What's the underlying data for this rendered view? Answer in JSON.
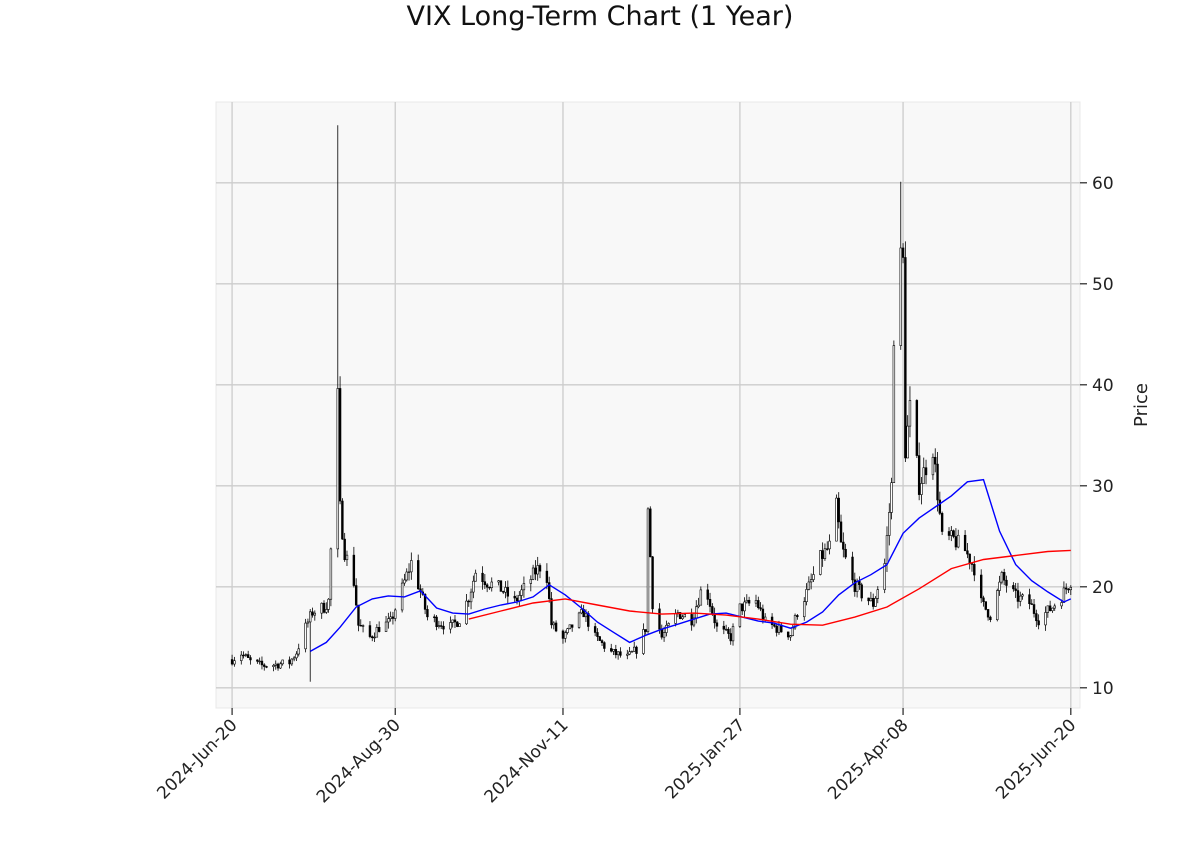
{
  "chart_data": {
    "type": "candlestick",
    "title": "VIX Long-Term Chart (1 Year)",
    "xlabel": "",
    "ylabel": "Price",
    "ylim": [
      8,
      68
    ],
    "xlim": [
      "2024-06-13",
      "2025-06-24"
    ],
    "grid": true,
    "y_axis_side": "right",
    "y_ticks": [
      10,
      20,
      30,
      40,
      50,
      60
    ],
    "x_ticks": [
      {
        "date": "2024-06-20",
        "label": "2024-Jun-20"
      },
      {
        "date": "2024-08-30",
        "label": "2024-Aug-30"
      },
      {
        "date": "2024-11-11",
        "label": "2024-Nov-11"
      },
      {
        "date": "2025-01-27",
        "label": "2025-Jan-27"
      },
      {
        "date": "2025-04-08",
        "label": "2025-Apr-08"
      },
      {
        "date": "2025-06-20",
        "label": "2025-Jun-20"
      }
    ],
    "colors": {
      "candles": "#000000",
      "ma_short": "#0000ff",
      "ma_long": "#ff0000",
      "grid": "#cccccc",
      "plot_bg": "#f8f8f8"
    },
    "price_path": [
      [
        "2024-06-20",
        12.8
      ],
      [
        "2024-06-24",
        13.4
      ],
      [
        "2024-06-28",
        12.6
      ],
      [
        "2024-07-03",
        12.2
      ],
      [
        "2024-07-09",
        12.3
      ],
      [
        "2024-07-15",
        12.5
      ],
      [
        "2024-07-18",
        13.5
      ],
      [
        "2024-07-22",
        16.0
      ],
      [
        "2024-07-25",
        17.5
      ],
      [
        "2024-07-30",
        18.0
      ],
      [
        "2024-08-01",
        18.6
      ],
      [
        "2024-08-05",
        38.6
      ],
      [
        "2024-08-06",
        27.7
      ],
      [
        "2024-08-08",
        23.5
      ],
      [
        "2024-08-12",
        20.5
      ],
      [
        "2024-08-14",
        16.2
      ],
      [
        "2024-08-19",
        15.0
      ],
      [
        "2024-08-23",
        16.0
      ],
      [
        "2024-08-28",
        16.5
      ],
      [
        "2024-09-03",
        20.5
      ],
      [
        "2024-09-06",
        22.4
      ],
      [
        "2024-09-10",
        19.5
      ],
      [
        "2024-09-13",
        17.0
      ],
      [
        "2024-09-18",
        16.5
      ],
      [
        "2024-09-23",
        16.0
      ],
      [
        "2024-09-27",
        16.8
      ],
      [
        "2024-10-01",
        19.0
      ],
      [
        "2024-10-04",
        21.5
      ],
      [
        "2024-10-09",
        20.5
      ],
      [
        "2024-10-15",
        19.8
      ],
      [
        "2024-10-21",
        18.5
      ],
      [
        "2024-10-25",
        19.8
      ],
      [
        "2024-10-30",
        21.5
      ],
      [
        "2024-11-01",
        22.0
      ],
      [
        "2024-11-04",
        21.0
      ],
      [
        "2024-11-06",
        16.3
      ],
      [
        "2024-11-11",
        14.8
      ],
      [
        "2024-11-15",
        16.1
      ],
      [
        "2024-11-20",
        17.5
      ],
      [
        "2024-11-25",
        15.0
      ],
      [
        "2024-12-02",
        13.5
      ],
      [
        "2024-12-09",
        13.0
      ],
      [
        "2024-12-13",
        13.8
      ],
      [
        "2024-12-17",
        15.9
      ],
      [
        "2024-12-18",
        27.6
      ],
      [
        "2024-12-20",
        18.4
      ],
      [
        "2024-12-24",
        15.0
      ],
      [
        "2024-12-31",
        17.4
      ],
      [
        "2025-01-06",
        16.8
      ],
      [
        "2025-01-10",
        19.5
      ],
      [
        "2025-01-13",
        19.2
      ],
      [
        "2025-01-17",
        15.9
      ],
      [
        "2025-01-23",
        15.0
      ],
      [
        "2025-01-27",
        17.9
      ],
      [
        "2025-02-03",
        18.6
      ],
      [
        "2025-02-07",
        16.5
      ],
      [
        "2025-02-12",
        15.9
      ],
      [
        "2025-02-18",
        15.3
      ],
      [
        "2025-02-21",
        17.5
      ],
      [
        "2025-02-25",
        19.4
      ],
      [
        "2025-03-03",
        22.8
      ],
      [
        "2025-03-07",
        24.0
      ],
      [
        "2025-03-10",
        27.9
      ],
      [
        "2025-03-12",
        24.1
      ],
      [
        "2025-03-17",
        20.5
      ],
      [
        "2025-03-21",
        19.3
      ],
      [
        "2025-03-26",
        18.3
      ],
      [
        "2025-03-31",
        22.3
      ],
      [
        "2025-04-03",
        30.0
      ],
      [
        "2025-04-04",
        45.3
      ],
      [
        "2025-04-07",
        52.3
      ],
      [
        "2025-04-08",
        52.0
      ],
      [
        "2025-04-09",
        33.6
      ],
      [
        "2025-04-11",
        37.6
      ],
      [
        "2025-04-15",
        30.1
      ],
      [
        "2025-04-21",
        33.8
      ],
      [
        "2025-04-25",
        24.8
      ],
      [
        "2025-04-30",
        24.7
      ],
      [
        "2025-05-05",
        23.6
      ],
      [
        "2025-05-09",
        21.9
      ],
      [
        "2025-05-12",
        18.4
      ],
      [
        "2025-05-16",
        17.2
      ],
      [
        "2025-05-21",
        20.9
      ],
      [
        "2025-05-27",
        19.0
      ],
      [
        "2025-06-02",
        18.4
      ],
      [
        "2025-06-06",
        16.8
      ],
      [
        "2025-06-12",
        18.0
      ],
      [
        "2025-06-16",
        19.1
      ],
      [
        "2025-06-20",
        20.6
      ]
    ],
    "spikes": [
      {
        "date": "2024-08-05",
        "high": 65.7
      },
      {
        "date": "2025-04-07",
        "high": 60.1
      }
    ],
    "ma_short": [
      [
        "2024-07-24",
        13.6
      ],
      [
        "2024-07-31",
        14.5
      ],
      [
        "2024-08-06",
        16.0
      ],
      [
        "2024-08-13",
        18.0
      ],
      [
        "2024-08-20",
        18.8
      ],
      [
        "2024-08-27",
        19.1
      ],
      [
        "2024-09-03",
        19.0
      ],
      [
        "2024-09-10",
        19.6
      ],
      [
        "2024-09-17",
        17.9
      ],
      [
        "2024-09-24",
        17.4
      ],
      [
        "2024-10-01",
        17.3
      ],
      [
        "2024-10-08",
        17.8
      ],
      [
        "2024-10-15",
        18.2
      ],
      [
        "2024-10-22",
        18.5
      ],
      [
        "2024-10-29",
        19.0
      ],
      [
        "2024-11-05",
        20.2
      ],
      [
        "2024-11-12",
        19.2
      ],
      [
        "2024-11-19",
        17.9
      ],
      [
        "2024-11-26",
        16.5
      ],
      [
        "2024-12-03",
        15.5
      ],
      [
        "2024-12-10",
        14.5
      ],
      [
        "2024-12-17",
        15.2
      ],
      [
        "2024-12-24",
        15.8
      ],
      [
        "2024-12-31",
        16.3
      ],
      [
        "2025-01-07",
        16.8
      ],
      [
        "2025-01-14",
        17.3
      ],
      [
        "2025-01-21",
        17.4
      ],
      [
        "2025-01-28",
        17.0
      ],
      [
        "2025-02-04",
        16.6
      ],
      [
        "2025-02-11",
        16.4
      ],
      [
        "2025-02-18",
        15.9
      ],
      [
        "2025-02-25",
        16.5
      ],
      [
        "2025-03-04",
        17.5
      ],
      [
        "2025-03-11",
        19.2
      ],
      [
        "2025-03-18",
        20.4
      ],
      [
        "2025-03-25",
        21.2
      ],
      [
        "2025-04-01",
        22.2
      ],
      [
        "2025-04-08",
        25.3
      ],
      [
        "2025-04-15",
        26.8
      ],
      [
        "2025-04-22",
        27.9
      ],
      [
        "2025-04-29",
        29.0
      ],
      [
        "2025-05-06",
        30.4
      ],
      [
        "2025-05-13",
        30.6
      ],
      [
        "2025-05-20",
        25.5
      ],
      [
        "2025-05-27",
        22.2
      ],
      [
        "2025-06-03",
        20.6
      ],
      [
        "2025-06-10",
        19.5
      ],
      [
        "2025-06-17",
        18.5
      ],
      [
        "2025-06-20",
        18.8
      ]
    ],
    "ma_long": [
      [
        "2024-10-01",
        16.8
      ],
      [
        "2024-10-15",
        17.6
      ],
      [
        "2024-10-29",
        18.4
      ],
      [
        "2024-11-12",
        18.8
      ],
      [
        "2024-11-26",
        18.2
      ],
      [
        "2024-12-10",
        17.6
      ],
      [
        "2024-12-24",
        17.3
      ],
      [
        "2025-01-07",
        17.4
      ],
      [
        "2025-01-21",
        17.2
      ],
      [
        "2025-02-04",
        16.8
      ],
      [
        "2025-02-18",
        16.3
      ],
      [
        "2025-03-04",
        16.2
      ],
      [
        "2025-03-18",
        17.0
      ],
      [
        "2025-04-01",
        18.0
      ],
      [
        "2025-04-15",
        19.8
      ],
      [
        "2025-04-29",
        21.8
      ],
      [
        "2025-05-13",
        22.7
      ],
      [
        "2025-05-27",
        23.1
      ],
      [
        "2025-06-10",
        23.5
      ],
      [
        "2025-06-20",
        23.6
      ]
    ]
  }
}
